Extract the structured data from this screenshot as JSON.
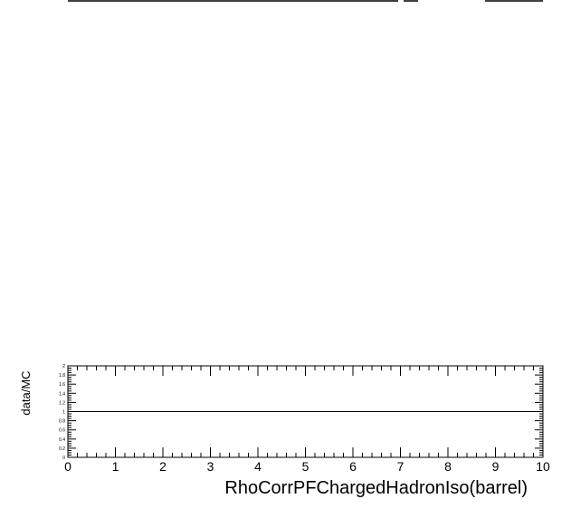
{
  "chart_data": {
    "type": "line",
    "title": "",
    "xlabel": "RhoCorrPFChargedHadronIso(barrel)",
    "ylabel": "data/MC",
    "xlim": [
      0,
      10
    ],
    "ylim": [
      0,
      2
    ],
    "x_ticks": [
      "0",
      "1",
      "2",
      "3",
      "4",
      "5",
      "6",
      "7",
      "8",
      "9",
      "10"
    ],
    "y_ticks": [
      "0",
      "0.2",
      "0.4",
      "0.6",
      "0.8",
      "1",
      "1.2",
      "1.4",
      "1.6",
      "1.8",
      "2"
    ],
    "reference_line": {
      "y": 1
    },
    "series": [],
    "grid": false,
    "colors": {
      "axis": "#000000",
      "line": "#000000"
    }
  }
}
